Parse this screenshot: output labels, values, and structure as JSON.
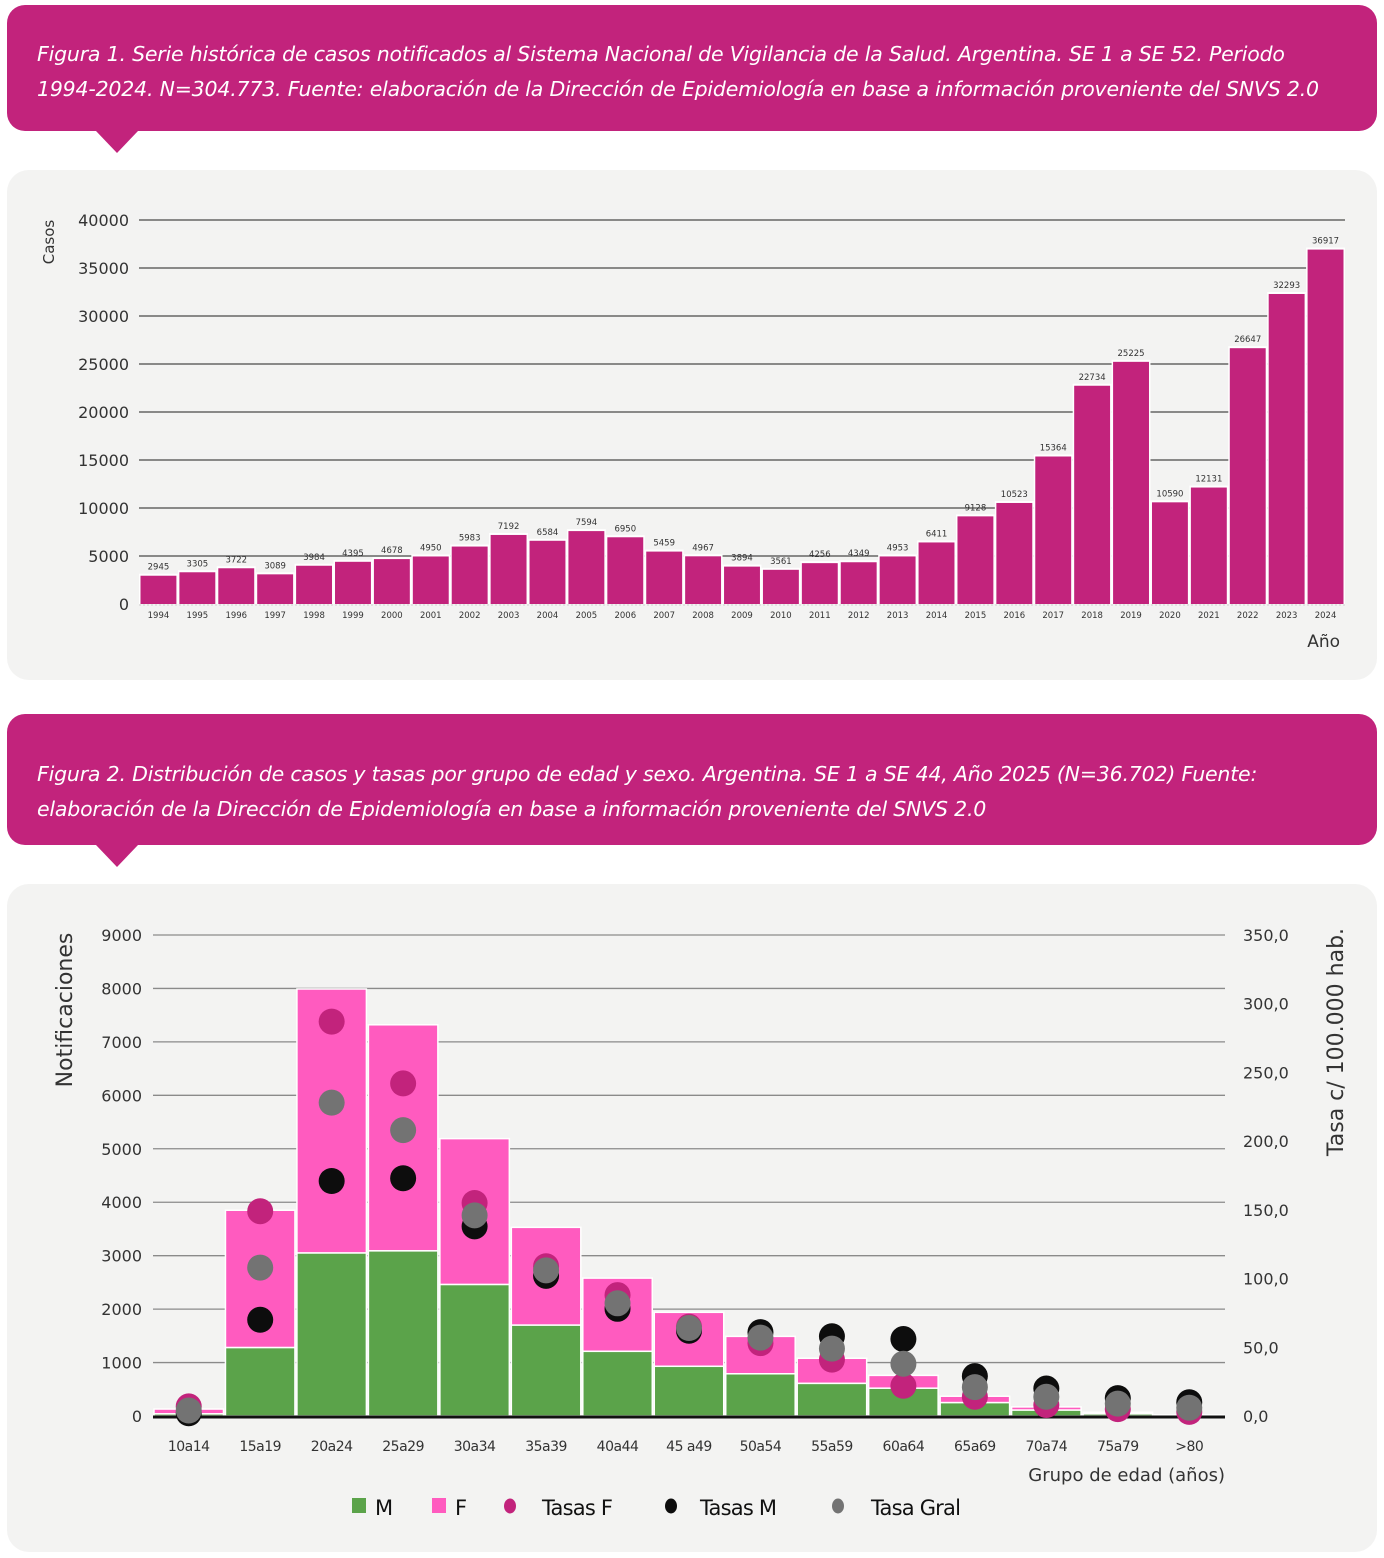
{
  "figure1": {
    "caption": "Figura 1. Serie histórica de casos notificados al Sistema Nacional de Vigilancia de la Salud. Argentina. SE 1 a SE 52. Periodo 1994-2024. N=304.773. Fuente: elaboración de la Dirección de Epidemiología en base a información proveniente del SNVS 2.0"
  },
  "figure2": {
    "caption": "Figura 2. Distribución de casos y tasas por grupo de edad y sexo. Argentina. SE 1 a SE 44, Año 2025 (N=36.702) Fuente: elaboración de la Dirección de Epidemiología en base a información proveniente del SNVS 2.0"
  },
  "colors": {
    "brand": "#c2237c",
    "panel_bg": "#f3f3f2",
    "bar_cases": "#c2237c",
    "male": "#5ba34a",
    "female": "#ff5bbf",
    "rate_f": "#c2237c",
    "rate_m": "#0d0d0d",
    "rate_gral": "#737373"
  },
  "chart_data": [
    {
      "type": "bar",
      "title": "",
      "xlabel": "Año",
      "ylabel": "Casos",
      "ylim": [
        0,
        40000
      ],
      "yticks": [
        0,
        5000,
        10000,
        15000,
        20000,
        25000,
        30000,
        35000,
        40000
      ],
      "grid": true,
      "categories": [
        "1994",
        "1995",
        "1996",
        "1997",
        "1998",
        "1999",
        "2000",
        "2001",
        "2002",
        "2003",
        "2004",
        "2005",
        "2006",
        "2007",
        "2008",
        "2009",
        "2010",
        "2011",
        "2012",
        "2013",
        "2014",
        "2015",
        "2016",
        "2017",
        "2018",
        "2019",
        "2020",
        "2021",
        "2022",
        "2023",
        "2024"
      ],
      "values": [
        2945,
        3305,
        3722,
        3089,
        3984,
        4395,
        4678,
        4950,
        5983,
        7192,
        6584,
        7594,
        6950,
        5459,
        4967,
        3894,
        3561,
        4256,
        4349,
        4953,
        6411,
        9128,
        10523,
        15364,
        22734,
        25225,
        10590,
        12131,
        26647,
        32293,
        36917
      ],
      "data_labels": true
    },
    {
      "type": "bar",
      "stacked": true,
      "title": "",
      "xlabel": "Grupo de edad (años)",
      "ylabel": "Notificaciones",
      "y2label": "Tasa c/ 100.000 hab.",
      "ylim": [
        0,
        9000
      ],
      "y2lim": [
        0,
        350
      ],
      "yticks": [
        0,
        1000,
        2000,
        3000,
        4000,
        5000,
        6000,
        7000,
        8000,
        9000
      ],
      "y2ticks": [
        "0,0",
        "50,0",
        "100,0",
        "150,0",
        "200,0",
        "250,0",
        "300,0",
        "350,0"
      ],
      "grid": true,
      "legend_position": "bottom",
      "categories": [
        "10a14",
        "15a19",
        "20a24",
        "25a29",
        "30a34",
        "35a39",
        "40a44",
        "45 a49",
        "50a54",
        "55a59",
        "60a64",
        "65a69",
        "70a74",
        "75a79",
        ">80"
      ],
      "series": [
        {
          "name": "M",
          "kind": "bar",
          "axis": "left",
          "values": [
            40,
            1280,
            3050,
            3090,
            2460,
            1700,
            1210,
            930,
            790,
            610,
            520,
            250,
            110,
            40,
            10
          ]
        },
        {
          "name": "F",
          "kind": "bar",
          "axis": "left",
          "values": [
            90,
            2570,
            4940,
            4230,
            2730,
            1830,
            1370,
            1010,
            700,
            470,
            240,
            120,
            60,
            30,
            10
          ]
        },
        {
          "name": "Tasas F",
          "kind": "point",
          "axis": "right",
          "values": [
            7,
            149,
            287,
            242,
            155,
            109,
            88,
            65,
            53,
            41,
            22,
            14,
            8,
            5,
            3
          ]
        },
        {
          "name": "Tasas M",
          "kind": "point",
          "axis": "right",
          "values": [
            2,
            70,
            171,
            173,
            138,
            102,
            78,
            62,
            61,
            58,
            56,
            29,
            20,
            13,
            10
          ]
        },
        {
          "name": "Tasa Gral",
          "kind": "point",
          "axis": "right",
          "values": [
            4,
            108,
            228,
            208,
            146,
            106,
            82,
            64,
            57,
            49,
            38,
            21,
            14,
            9,
            6
          ]
        }
      ]
    }
  ]
}
